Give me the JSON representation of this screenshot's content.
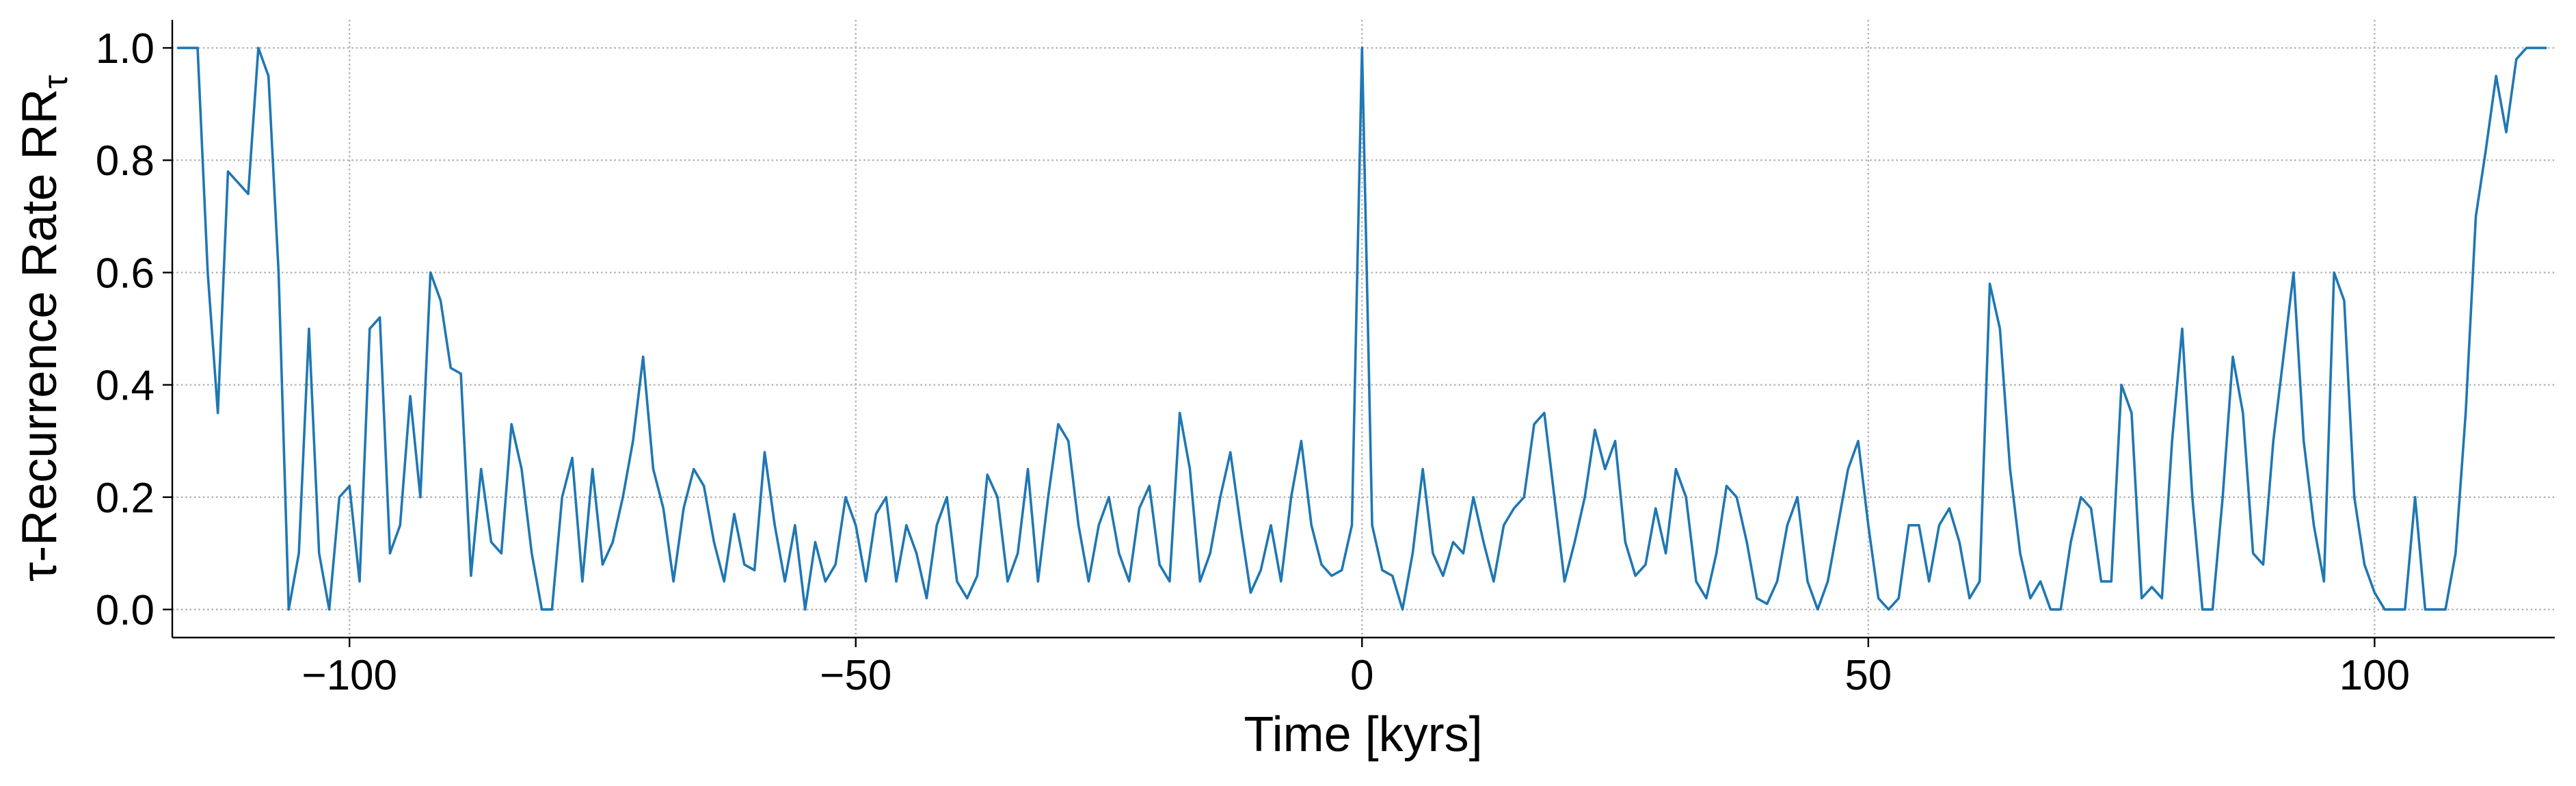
{
  "chart_data": {
    "type": "line",
    "xlabel": "Time [kyrs]",
    "ylabel": "τ-Recurrence Rate RR",
    "ylabel_subscript": "τ",
    "color": "#1f77b4",
    "grid": true,
    "xlim": [
      -117.5,
      117.8
    ],
    "ylim": [
      -0.05,
      1.05
    ],
    "xticks": [
      {
        "value": -100,
        "label": "−100"
      },
      {
        "value": -50,
        "label": "−50"
      },
      0,
      50,
      100
    ],
    "yticks": [
      {
        "value": 0,
        "label": "0.0"
      },
      {
        "value": 0.2,
        "label": "0.2"
      },
      {
        "value": 0.4,
        "label": "0.4"
      },
      {
        "value": 0.6,
        "label": "0.6"
      },
      {
        "value": 0.8,
        "label": "0.8"
      },
      {
        "value": 1,
        "label": "1.0"
      }
    ],
    "x": [
      -117,
      -116,
      -115,
      -114,
      -113,
      -112,
      -111,
      -110,
      -109,
      -108,
      -107,
      -106,
      -105,
      -104,
      -103,
      -102,
      -101,
      -100,
      -99,
      -98,
      -97,
      -96,
      -95,
      -94,
      -93,
      -92,
      -91,
      -90,
      -89,
      -88,
      -87,
      -86,
      -85,
      -84,
      -83,
      -82,
      -81,
      -80,
      -79,
      -78,
      -77,
      -76,
      -75,
      -74,
      -73,
      -72,
      -71,
      -70,
      -69,
      -68,
      -67,
      -66,
      -65,
      -64,
      -63,
      -62,
      -61,
      -60,
      -59,
      -58,
      -57,
      -56,
      -55,
      -54,
      -53,
      -52,
      -51,
      -50,
      -49,
      -48,
      -47,
      -46,
      -45,
      -44,
      -43,
      -42,
      -41,
      -40,
      -39,
      -38,
      -37,
      -36,
      -35,
      -34,
      -33,
      -32,
      -31,
      -30,
      -29,
      -28,
      -27,
      -26,
      -25,
      -24,
      -23,
      -22,
      -21,
      -20,
      -19,
      -18,
      -17,
      -16,
      -15,
      -14,
      -13,
      -12,
      -11,
      -10,
      -9,
      -8,
      -7,
      -6,
      -5,
      -4,
      -3,
      -2,
      -1,
      0,
      1,
      2,
      3,
      4,
      5,
      6,
      7,
      8,
      9,
      10,
      11,
      12,
      13,
      14,
      15,
      16,
      17,
      18,
      19,
      20,
      21,
      22,
      23,
      24,
      25,
      26,
      27,
      28,
      29,
      30,
      31,
      32,
      33,
      34,
      35,
      36,
      37,
      38,
      39,
      40,
      41,
      42,
      43,
      44,
      45,
      46,
      47,
      48,
      49,
      50,
      51,
      52,
      53,
      54,
      55,
      56,
      57,
      58,
      59,
      60,
      61,
      62,
      63,
      64,
      65,
      66,
      67,
      68,
      69,
      70,
      71,
      72,
      73,
      74,
      75,
      76,
      77,
      78,
      79,
      80,
      81,
      82,
      83,
      84,
      85,
      86,
      87,
      88,
      89,
      90,
      91,
      92,
      93,
      94,
      95,
      96,
      97,
      98,
      99,
      100,
      101,
      102,
      103,
      104,
      105,
      106,
      107,
      108,
      109,
      110,
      111,
      112,
      113,
      114,
      115,
      116,
      117
    ],
    "values": [
      1,
      1,
      1,
      0.6,
      0.35,
      0.78,
      0.76,
      0.74,
      1,
      0.95,
      0.6,
      0,
      0.1,
      0.5,
      0.1,
      0,
      0.2,
      0.22,
      0.05,
      0.5,
      0.52,
      0.1,
      0.15,
      0.38,
      0.2,
      0.6,
      0.55,
      0.43,
      0.42,
      0.06,
      0.25,
      0.12,
      0.1,
      0.33,
      0.25,
      0.1,
      0,
      0,
      0.2,
      0.27,
      0.05,
      0.25,
      0.08,
      0.12,
      0.2,
      0.3,
      0.45,
      0.25,
      0.18,
      0.05,
      0.18,
      0.25,
      0.22,
      0.12,
      0.05,
      0.17,
      0.08,
      0.07,
      0.28,
      0.15,
      0.05,
      0.15,
      0,
      0.12,
      0.05,
      0.08,
      0.2,
      0.15,
      0.05,
      0.17,
      0.2,
      0.05,
      0.15,
      0.1,
      0.02,
      0.15,
      0.2,
      0.05,
      0.02,
      0.06,
      0.24,
      0.2,
      0.05,
      0.1,
      0.25,
      0.05,
      0.2,
      0.33,
      0.3,
      0.15,
      0.05,
      0.15,
      0.2,
      0.1,
      0.05,
      0.18,
      0.22,
      0.08,
      0.05,
      0.35,
      0.25,
      0.05,
      0.1,
      0.2,
      0.28,
      0.15,
      0.03,
      0.07,
      0.15,
      0.05,
      0.2,
      0.3,
      0.15,
      0.08,
      0.06,
      0.07,
      0.15,
      1,
      0.15,
      0.07,
      0.06,
      0,
      0.1,
      0.25,
      0.1,
      0.06,
      0.12,
      0.1,
      0.2,
      0.12,
      0.05,
      0.15,
      0.18,
      0.2,
      0.33,
      0.35,
      0.2,
      0.05,
      0.12,
      0.2,
      0.32,
      0.25,
      0.3,
      0.12,
      0.06,
      0.08,
      0.18,
      0.1,
      0.25,
      0.2,
      0.05,
      0.02,
      0.1,
      0.22,
      0.2,
      0.12,
      0.02,
      0.01,
      0.05,
      0.15,
      0.2,
      0.05,
      0,
      0.05,
      0.15,
      0.25,
      0.3,
      0.15,
      0.02,
      0,
      0.02,
      0.15,
      0.15,
      0.05,
      0.15,
      0.18,
      0.12,
      0.02,
      0.05,
      0.58,
      0.5,
      0.25,
      0.1,
      0.02,
      0.05,
      0,
      0,
      0.12,
      0.2,
      0.18,
      0.05,
      0.05,
      0.4,
      0.35,
      0.02,
      0.04,
      0.02,
      0.3,
      0.5,
      0.2,
      0,
      0,
      0.2,
      0.45,
      0.35,
      0.1,
      0.08,
      0.3,
      0.45,
      0.6,
      0.3,
      0.15,
      0.05,
      0.6,
      0.55,
      0.2,
      0.08,
      0.03,
      0,
      0,
      0,
      0.2,
      0,
      0,
      0,
      0.1,
      0.35,
      0.7,
      0.82,
      0.95,
      0.85,
      0.98,
      1,
      1,
      1
    ]
  }
}
